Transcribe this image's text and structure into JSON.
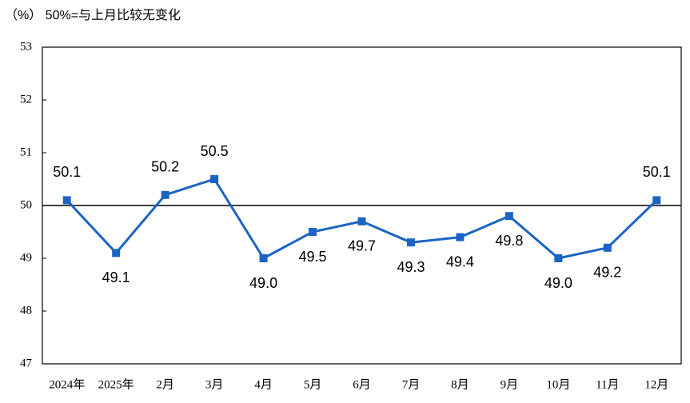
{
  "chart_data": {
    "type": "line",
    "title": "（%）  50%=与上月比较无变化",
    "categories": [
      "2024年",
      "2025年",
      "2月",
      "3月",
      "4月",
      "5月",
      "6月",
      "7月",
      "8月",
      "9月",
      "10月",
      "11月",
      "12月"
    ],
    "series": [
      {
        "color": "#1b64c4",
        "values": [
          50.1,
          49.1,
          50.2,
          50.5,
          49.0,
          49.5,
          49.7,
          49.3,
          49.4,
          49.8,
          49.0,
          49.2,
          50.1
        ],
        "value_labels": [
          "50.1",
          "49.1",
          "50.2",
          "50.5",
          "49.0",
          "49.5",
          "49.7",
          "49.3",
          "49.4",
          "49.8",
          "49.0",
          "49.2",
          "50.1"
        ]
      }
    ],
    "ylim": [
      47,
      53
    ],
    "yticks": [
      47,
      48,
      49,
      50,
      51,
      52,
      53
    ],
    "reference_line": 50,
    "grid": false
  }
}
